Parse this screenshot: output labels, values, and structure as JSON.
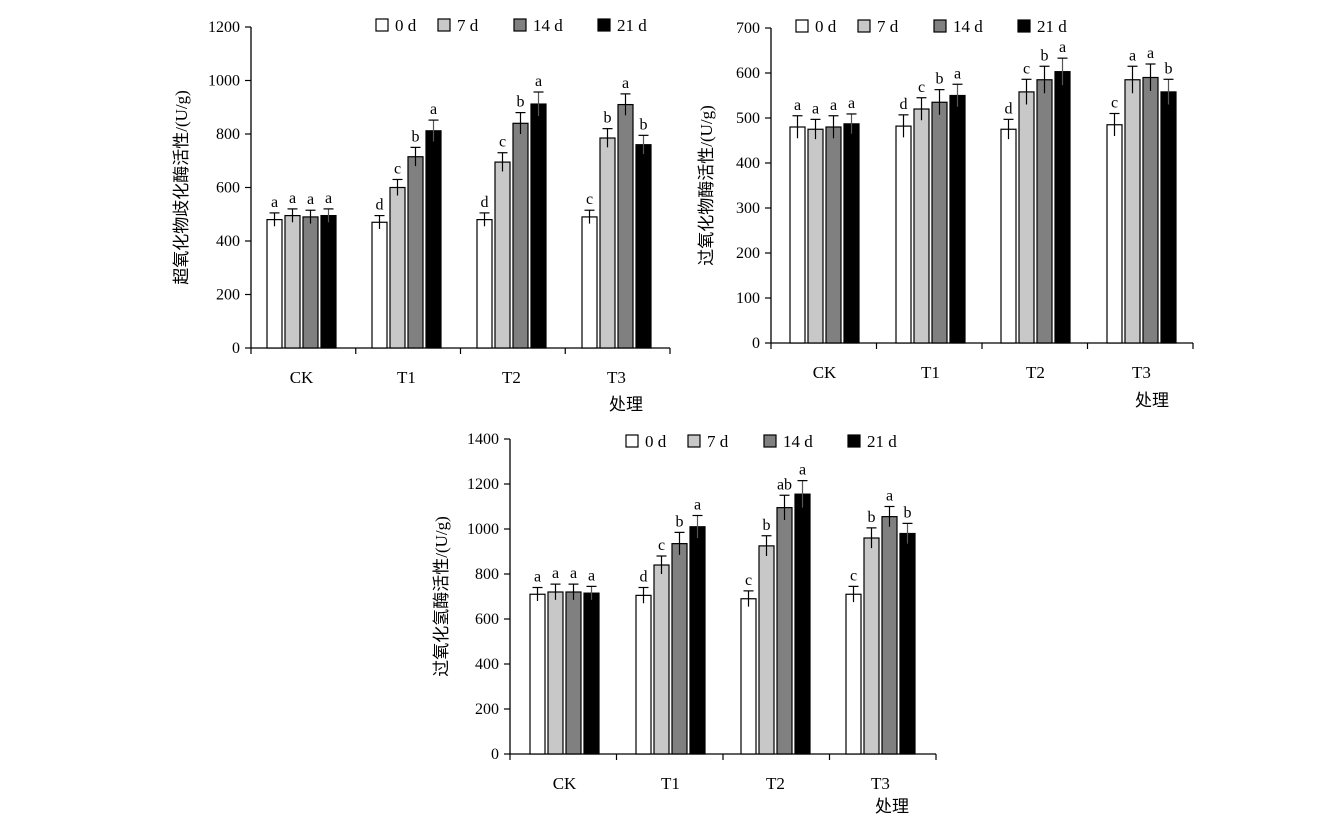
{
  "chart_data": [
    {
      "type": "bar",
      "title": "",
      "xlabel": "处理",
      "ylabel": "超氧化物歧化酶活性/(U/g)",
      "ylim": [
        0,
        1200
      ],
      "yticks": [
        0,
        200,
        400,
        600,
        800,
        1000,
        1200
      ],
      "categories": [
        "CK",
        "T1",
        "T2",
        "T3"
      ],
      "legend_position": "top",
      "series": [
        {
          "name": "0 d",
          "color": "#ffffff",
          "values": [
            480,
            470,
            480,
            490
          ],
          "errors": [
            25,
            25,
            25,
            25
          ],
          "labels": [
            "a",
            "d",
            "d",
            "c"
          ]
        },
        {
          "name": "7 d",
          "color": "#c8c8c8",
          "values": [
            495,
            600,
            695,
            785
          ],
          "errors": [
            25,
            30,
            35,
            35
          ],
          "labels": [
            "a",
            "c",
            "c",
            "b"
          ]
        },
        {
          "name": "14 d",
          "color": "#808080",
          "values": [
            490,
            715,
            840,
            910
          ],
          "errors": [
            25,
            35,
            40,
            40
          ],
          "labels": [
            "a",
            "b",
            "b",
            "a"
          ]
        },
        {
          "name": "21 d",
          "color": "#000000",
          "values": [
            495,
            812,
            912,
            760
          ],
          "errors": [
            25,
            40,
            45,
            35
          ],
          "labels": [
            "a",
            "a",
            "a",
            "b"
          ]
        }
      ]
    },
    {
      "type": "bar",
      "title": "",
      "xlabel": "处理",
      "ylabel": "过氧化物酶活性/(U/g)",
      "ylim": [
        0,
        700
      ],
      "yticks": [
        0,
        100,
        200,
        300,
        400,
        500,
        600,
        700
      ],
      "categories": [
        "CK",
        "T1",
        "T2",
        "T3"
      ],
      "legend_position": "top",
      "series": [
        {
          "name": "0 d",
          "color": "#ffffff",
          "values": [
            480,
            482,
            475,
            485
          ],
          "errors": [
            25,
            25,
            22,
            25
          ],
          "labels": [
            "a",
            "d",
            "d",
            "c"
          ]
        },
        {
          "name": "7 d",
          "color": "#c8c8c8",
          "values": [
            475,
            520,
            558,
            585
          ],
          "errors": [
            22,
            25,
            28,
            30
          ],
          "labels": [
            "a",
            "c",
            "c",
            "a"
          ]
        },
        {
          "name": "14 d",
          "color": "#808080",
          "values": [
            480,
            535,
            585,
            590
          ],
          "errors": [
            25,
            28,
            30,
            30
          ],
          "labels": [
            "a",
            "b",
            "b",
            "a"
          ]
        },
        {
          "name": "21 d",
          "color": "#000000",
          "values": [
            487,
            550,
            603,
            558
          ],
          "errors": [
            22,
            25,
            30,
            28
          ],
          "labels": [
            "a",
            "a",
            "a",
            "b"
          ]
        }
      ]
    },
    {
      "type": "bar",
      "title": "",
      "xlabel": "处理",
      "ylabel": "过氧化氢酶活性/(U/g)",
      "ylim": [
        0,
        1400
      ],
      "yticks": [
        0,
        200,
        400,
        600,
        800,
        1000,
        1200,
        1400
      ],
      "categories": [
        "CK",
        "T1",
        "T2",
        "T3"
      ],
      "legend_position": "top",
      "series": [
        {
          "name": "0 d",
          "color": "#ffffff",
          "values": [
            710,
            705,
            690,
            710
          ],
          "errors": [
            30,
            35,
            35,
            35
          ],
          "labels": [
            "a",
            "d",
            "c",
            "c"
          ]
        },
        {
          "name": "7 d",
          "color": "#c8c8c8",
          "values": [
            720,
            840,
            925,
            960
          ],
          "errors": [
            35,
            40,
            45,
            45
          ],
          "labels": [
            "a",
            "c",
            "b",
            "b"
          ]
        },
        {
          "name": "14 d",
          "color": "#808080",
          "values": [
            720,
            935,
            1095,
            1055
          ],
          "errors": [
            35,
            50,
            55,
            45
          ],
          "labels": [
            "a",
            "b",
            "ab",
            "a"
          ]
        },
        {
          "name": "21 d",
          "color": "#000000",
          "values": [
            715,
            1010,
            1155,
            980
          ],
          "errors": [
            30,
            50,
            60,
            45
          ],
          "labels": [
            "a",
            "a",
            "a",
            "b"
          ]
        }
      ]
    }
  ]
}
